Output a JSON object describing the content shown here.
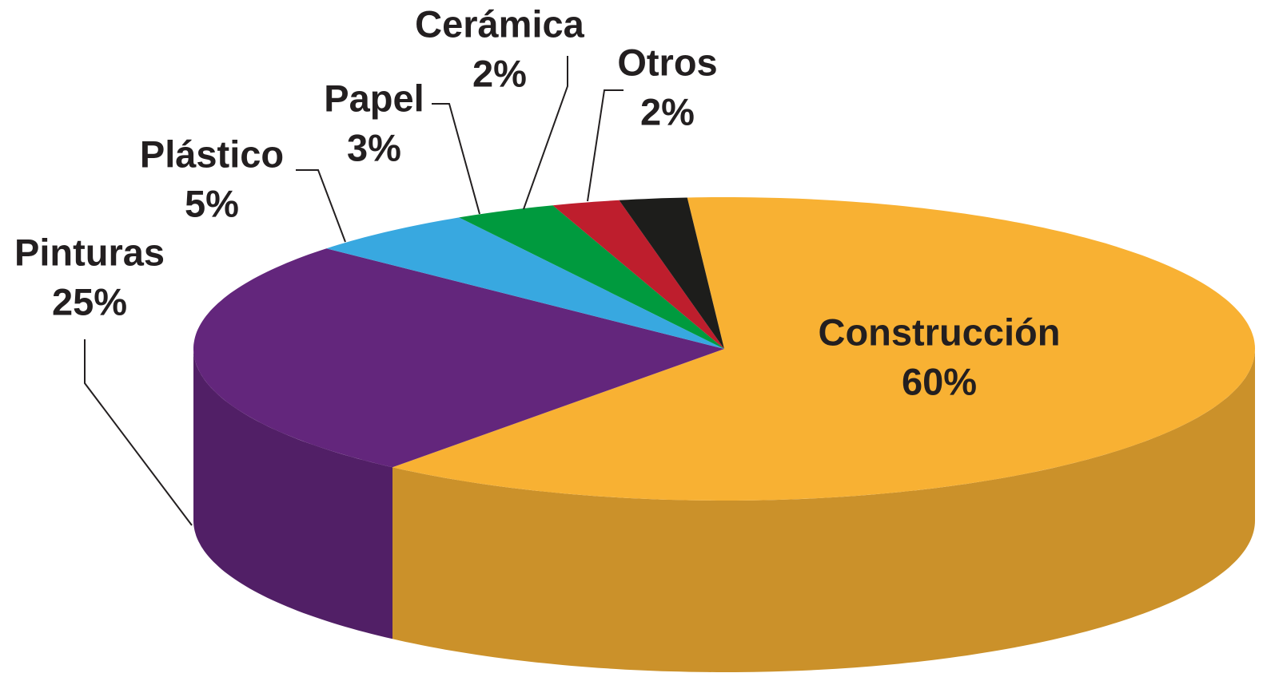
{
  "chart_data": {
    "type": "pie",
    "categories": [
      "Construcción",
      "Pinturas",
      "Plástico",
      "Papel",
      "Cerámica",
      "Otros"
    ],
    "values": [
      60,
      25,
      5,
      3,
      2,
      2
    ],
    "value_labels": [
      "60%",
      "25%",
      "5%",
      "3%",
      "2%",
      "2%"
    ],
    "colors": [
      "#f8b133",
      "#63267c",
      "#38a8e0",
      "#009a3e",
      "#be1e2d",
      "#1d1d1b"
    ]
  }
}
